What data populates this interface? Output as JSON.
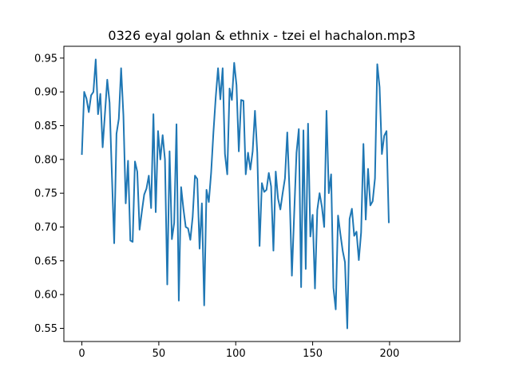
{
  "chart_data": {
    "type": "line",
    "title": "0326 eyal golan & ethnix - tzei el hachalon.mp3",
    "xlabel": "",
    "ylabel": "",
    "xlim": [
      -11.7,
      245.7
    ],
    "ylim": [
      0.5305,
      0.9675
    ],
    "x_ticks": [
      0,
      50,
      100,
      150,
      200
    ],
    "y_ticks": [
      0.55,
      0.6,
      0.65,
      0.7,
      0.75,
      0.8,
      0.85,
      0.9,
      0.95
    ],
    "x_tick_labels": [
      "0",
      "50",
      "100",
      "150",
      "200"
    ],
    "y_tick_labels": [
      "0.55",
      "0.60",
      "0.65",
      "0.70",
      "0.75",
      "0.80",
      "0.85",
      "0.90",
      "0.95"
    ],
    "grid": false,
    "legend": "none",
    "line_color": "#1f77b4",
    "series": [
      {
        "name": "",
        "x_start": 0,
        "x_step": 1.5,
        "values": [
          0.808,
          0.9,
          0.89,
          0.87,
          0.895,
          0.9,
          0.948,
          0.867,
          0.897,
          0.818,
          0.868,
          0.918,
          0.884,
          0.778,
          0.676,
          0.838,
          0.86,
          0.935,
          0.865,
          0.735,
          0.798,
          0.68,
          0.678,
          0.797,
          0.782,
          0.696,
          0.723,
          0.748,
          0.757,
          0.776,
          0.728,
          0.867,
          0.722,
          0.842,
          0.8,
          0.836,
          0.8,
          0.615,
          0.812,
          0.682,
          0.706,
          0.852,
          0.591,
          0.759,
          0.727,
          0.7,
          0.698,
          0.681,
          0.715,
          0.776,
          0.771,
          0.668,
          0.735,
          0.584,
          0.755,
          0.737,
          0.78,
          0.84,
          0.892,
          0.935,
          0.889,
          0.935,
          0.808,
          0.778,
          0.905,
          0.888,
          0.943,
          0.91,
          0.812,
          0.888,
          0.887,
          0.778,
          0.81,
          0.785,
          0.812,
          0.872,
          0.81,
          0.672,
          0.765,
          0.752,
          0.755,
          0.78,
          0.76,
          0.665,
          0.782,
          0.742,
          0.726,
          0.75,
          0.772,
          0.84,
          0.75,
          0.628,
          0.72,
          0.81,
          0.845,
          0.611,
          0.843,
          0.638,
          0.853,
          0.686,
          0.718,
          0.609,
          0.725,
          0.75,
          0.73,
          0.7,
          0.872,
          0.75,
          0.778,
          0.61,
          0.578,
          0.717,
          0.69,
          0.665,
          0.648,
          0.55,
          0.712,
          0.727,
          0.687,
          0.693,
          0.651,
          0.692,
          0.823,
          0.711,
          0.786,
          0.732,
          0.738,
          0.772,
          0.941,
          0.907,
          0.808,
          0.835,
          0.842,
          0.707
        ]
      }
    ]
  }
}
